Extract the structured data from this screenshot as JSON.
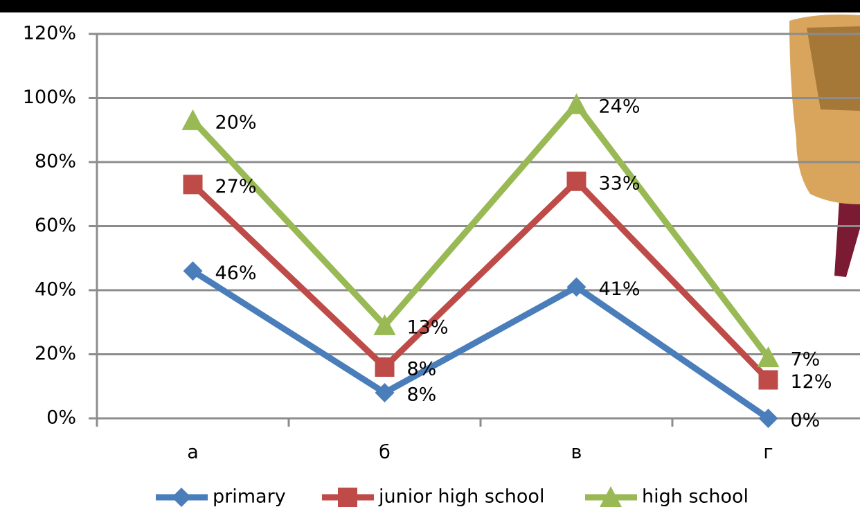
{
  "chart_data": {
    "type": "line",
    "stacked": true,
    "categories": [
      "а",
      "б",
      "в",
      "г"
    ],
    "series": [
      {
        "name": "primary",
        "color": "#4a7ebb",
        "marker": "diamond",
        "values": [
          46,
          8,
          41,
          0
        ],
        "value_labels": [
          "46%",
          "8%",
          "41%",
          "0%"
        ]
      },
      {
        "name": "junior high school",
        "color": "#be4b48",
        "marker": "square",
        "values": [
          27,
          8,
          33,
          12
        ],
        "value_labels": [
          "27%",
          "8%",
          "33%",
          "12%"
        ]
      },
      {
        "name": "high school",
        "color": "#98b954",
        "marker": "triangle",
        "values": [
          20,
          13,
          24,
          7
        ],
        "value_labels": [
          "20%",
          "13%",
          "24%",
          "7%"
        ]
      }
    ],
    "ylim": [
      0,
      120
    ],
    "yticks": [
      {
        "value": 0,
        "label": "0%"
      },
      {
        "value": 20,
        "label": "20%"
      },
      {
        "value": 40,
        "label": "40%"
      },
      {
        "value": 60,
        "label": "60%"
      },
      {
        "value": 80,
        "label": "80%"
      },
      {
        "value": 100,
        "label": "100%"
      },
      {
        "value": 120,
        "label": "120%"
      }
    ],
    "grid": true,
    "legend": "bottom"
  }
}
